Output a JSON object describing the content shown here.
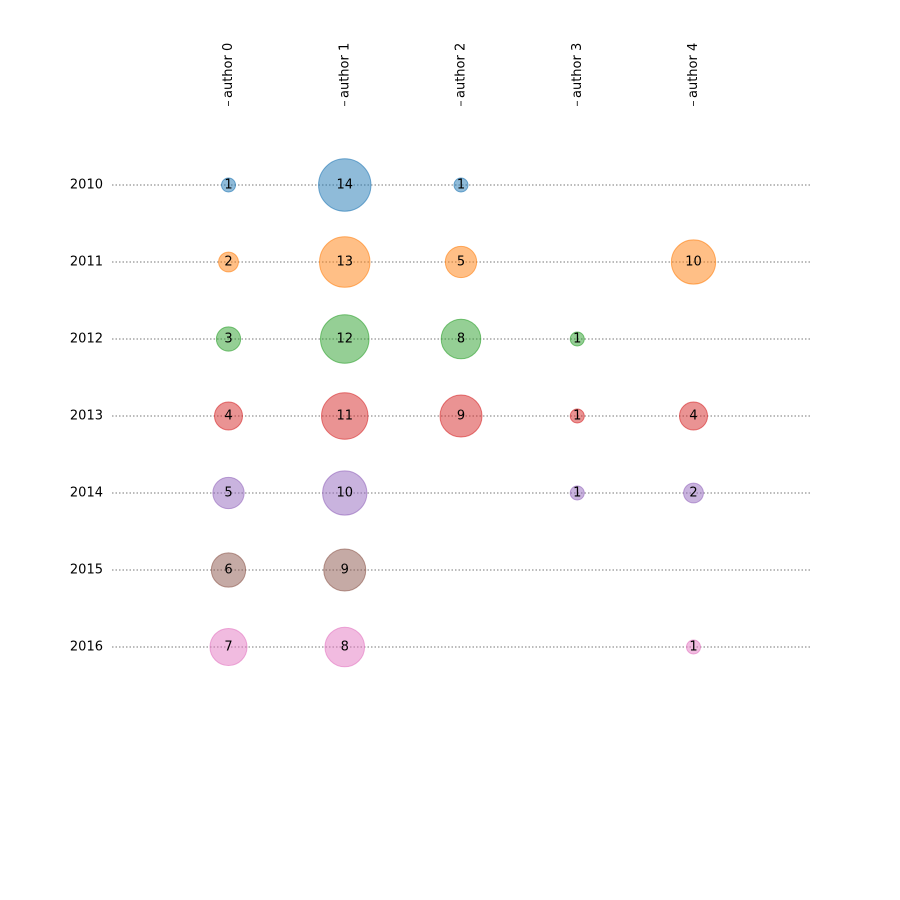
{
  "chart_data": {
    "type": "bubble",
    "categories": [
      "author 0",
      "author 1",
      "author 2",
      "author 3",
      "author 4"
    ],
    "series": [
      {
        "name": "2010",
        "color": "#1f77b4",
        "values": [
          1,
          14,
          1,
          null,
          null
        ]
      },
      {
        "name": "2011",
        "color": "#ff7f0e",
        "values": [
          2,
          13,
          5,
          null,
          10
        ]
      },
      {
        "name": "2012",
        "color": "#2ca02c",
        "values": [
          3,
          12,
          8,
          1,
          null
        ]
      },
      {
        "name": "2013",
        "color": "#d62728",
        "values": [
          4,
          11,
          9,
          1,
          4
        ]
      },
      {
        "name": "2014",
        "color": "#9467bd",
        "values": [
          5,
          10,
          null,
          1,
          2
        ]
      },
      {
        "name": "2015",
        "color": "#8c564b",
        "values": [
          6,
          9,
          null,
          null,
          null
        ]
      },
      {
        "name": "2016",
        "color": "#e377c2",
        "values": [
          7,
          8,
          null,
          null,
          1
        ]
      }
    ],
    "grid": true
  }
}
